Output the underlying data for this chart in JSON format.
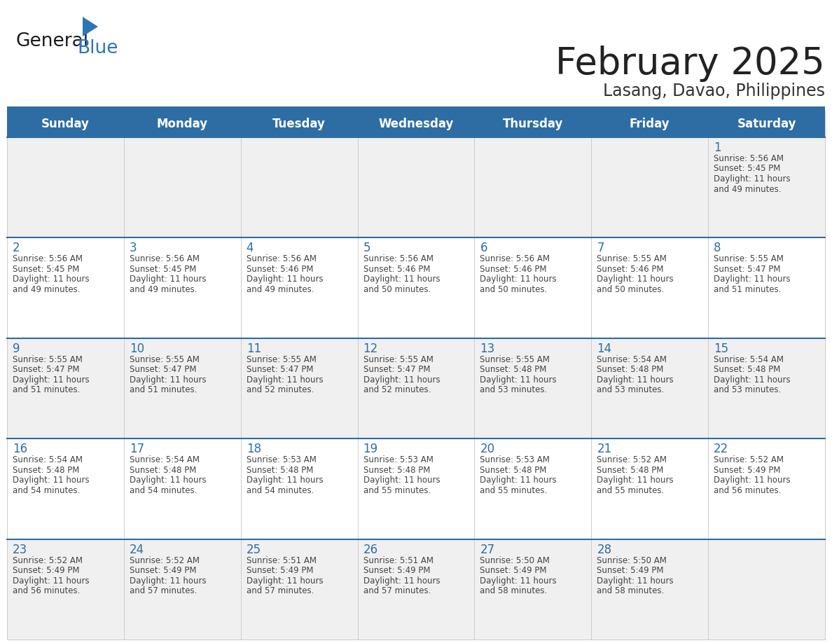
{
  "title": "February 2025",
  "subtitle": "Lasang, Davao, Philippines",
  "header_bg": "#2E6DA4",
  "header_text": "#FFFFFF",
  "cell_bg_light": "#F0F0F0",
  "cell_bg_white": "#FFFFFF",
  "day_headers": [
    "Sunday",
    "Monday",
    "Tuesday",
    "Wednesday",
    "Thursday",
    "Friday",
    "Saturday"
  ],
  "title_color": "#222222",
  "subtitle_color": "#333333",
  "day_num_color": "#2E6DA4",
  "info_color": "#444444",
  "row_separator_color": "#2E6DA4",
  "col_separator_color": "#CCCCCC",
  "top_bar_color": "#2E6DA4",
  "logo_black": "#1A1A1A",
  "logo_blue": "#2E75B6",
  "logo_triangle": "#2E75B6",
  "calendar_data": [
    [
      null,
      null,
      null,
      null,
      null,
      null,
      1
    ],
    [
      2,
      3,
      4,
      5,
      6,
      7,
      8
    ],
    [
      9,
      10,
      11,
      12,
      13,
      14,
      15
    ],
    [
      16,
      17,
      18,
      19,
      20,
      21,
      22
    ],
    [
      23,
      24,
      25,
      26,
      27,
      28,
      null
    ]
  ],
  "sunrise_data": {
    "1": "5:56 AM",
    "2": "5:56 AM",
    "3": "5:56 AM",
    "4": "5:56 AM",
    "5": "5:56 AM",
    "6": "5:56 AM",
    "7": "5:55 AM",
    "8": "5:55 AM",
    "9": "5:55 AM",
    "10": "5:55 AM",
    "11": "5:55 AM",
    "12": "5:55 AM",
    "13": "5:55 AM",
    "14": "5:54 AM",
    "15": "5:54 AM",
    "16": "5:54 AM",
    "17": "5:54 AM",
    "18": "5:53 AM",
    "19": "5:53 AM",
    "20": "5:53 AM",
    "21": "5:52 AM",
    "22": "5:52 AM",
    "23": "5:52 AM",
    "24": "5:52 AM",
    "25": "5:51 AM",
    "26": "5:51 AM",
    "27": "5:50 AM",
    "28": "5:50 AM"
  },
  "sunset_data": {
    "1": "5:45 PM",
    "2": "5:45 PM",
    "3": "5:45 PM",
    "4": "5:46 PM",
    "5": "5:46 PM",
    "6": "5:46 PM",
    "7": "5:46 PM",
    "8": "5:47 PM",
    "9": "5:47 PM",
    "10": "5:47 PM",
    "11": "5:47 PM",
    "12": "5:47 PM",
    "13": "5:48 PM",
    "14": "5:48 PM",
    "15": "5:48 PM",
    "16": "5:48 PM",
    "17": "5:48 PM",
    "18": "5:48 PM",
    "19": "5:48 PM",
    "20": "5:48 PM",
    "21": "5:48 PM",
    "22": "5:49 PM",
    "23": "5:49 PM",
    "24": "5:49 PM",
    "25": "5:49 PM",
    "26": "5:49 PM",
    "27": "5:49 PM",
    "28": "5:49 PM"
  },
  "daylight_data": {
    "1": "11 hours\nand 49 minutes.",
    "2": "11 hours\nand 49 minutes.",
    "3": "11 hours\nand 49 minutes.",
    "4": "11 hours\nand 49 minutes.",
    "5": "11 hours\nand 50 minutes.",
    "6": "11 hours\nand 50 minutes.",
    "7": "11 hours\nand 50 minutes.",
    "8": "11 hours\nand 51 minutes.",
    "9": "11 hours\nand 51 minutes.",
    "10": "11 hours\nand 51 minutes.",
    "11": "11 hours\nand 52 minutes.",
    "12": "11 hours\nand 52 minutes.",
    "13": "11 hours\nand 53 minutes.",
    "14": "11 hours\nand 53 minutes.",
    "15": "11 hours\nand 53 minutes.",
    "16": "11 hours\nand 54 minutes.",
    "17": "11 hours\nand 54 minutes.",
    "18": "11 hours\nand 54 minutes.",
    "19": "11 hours\nand 55 minutes.",
    "20": "11 hours\nand 55 minutes.",
    "21": "11 hours\nand 55 minutes.",
    "22": "11 hours\nand 56 minutes.",
    "23": "11 hours\nand 56 minutes.",
    "24": "11 hours\nand 57 minutes.",
    "25": "11 hours\nand 57 minutes.",
    "26": "11 hours\nand 57 minutes.",
    "27": "11 hours\nand 58 minutes.",
    "28": "11 hours\nand 58 minutes."
  }
}
